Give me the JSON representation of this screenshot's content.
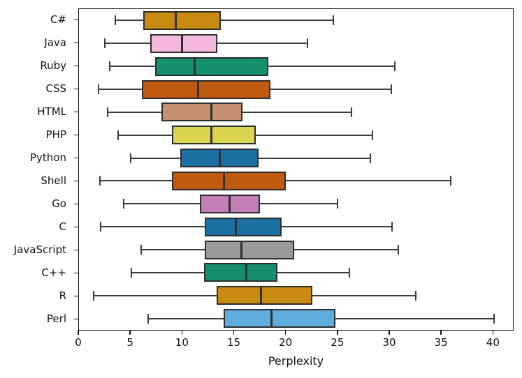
{
  "figure": {
    "xlabel": "Perplexity"
  },
  "chart_data": {
    "type": "boxplot",
    "orientation": "horizontal",
    "title": "",
    "xlabel": "Perplexity",
    "ylabel": "",
    "xlim": [
      0,
      42
    ],
    "x_ticks": [
      0,
      5,
      10,
      15,
      20,
      25,
      30,
      35,
      40
    ],
    "grid": false,
    "legend": "none",
    "frame": true,
    "edge_color": "#2e2e2e",
    "whisker_color": "#3b3b3b",
    "categories": [
      "C#",
      "Java",
      "Ruby",
      "CSS",
      "HTML",
      "PHP",
      "Python",
      "Shell",
      "Go",
      "C",
      "JavaScript",
      "C++",
      "R",
      "Perl"
    ],
    "series": [
      {
        "name": "C#",
        "whisker_low": 3.5,
        "q1": 6.2,
        "median": 9.4,
        "q3": 13.7,
        "whisker_high": 24.6,
        "color": "#C98A12"
      },
      {
        "name": "Java",
        "whisker_low": 2.5,
        "q1": 6.9,
        "median": 10.0,
        "q3": 13.4,
        "whisker_high": 22.1,
        "color": "#F3B8DB"
      },
      {
        "name": "Ruby",
        "whisker_low": 3.0,
        "q1": 7.4,
        "median": 11.2,
        "q3": 18.3,
        "whisker_high": 30.6,
        "color": "#168F6E"
      },
      {
        "name": "CSS",
        "whisker_low": 1.9,
        "q1": 6.1,
        "median": 11.5,
        "q3": 18.5,
        "whisker_high": 30.2,
        "color": "#C05A11"
      },
      {
        "name": "HTML",
        "whisker_low": 2.8,
        "q1": 8.0,
        "median": 12.8,
        "q3": 15.8,
        "whisker_high": 26.4,
        "color": "#C3916F"
      },
      {
        "name": "PHP",
        "whisker_low": 3.8,
        "q1": 9.0,
        "median": 12.8,
        "q3": 17.1,
        "whisker_high": 28.4,
        "color": "#DBD44E"
      },
      {
        "name": "Python",
        "whisker_low": 5.0,
        "q1": 9.8,
        "median": 13.6,
        "q3": 17.4,
        "whisker_high": 28.2,
        "color": "#1C6FA3"
      },
      {
        "name": "Shell",
        "whisker_low": 2.0,
        "q1": 9.0,
        "median": 14.0,
        "q3": 20.0,
        "whisker_high": 36.0,
        "color": "#C05A11"
      },
      {
        "name": "Go",
        "whisker_low": 4.3,
        "q1": 11.7,
        "median": 14.6,
        "q3": 17.5,
        "whisker_high": 25.0,
        "color": "#C280B7"
      },
      {
        "name": "C",
        "whisker_low": 2.1,
        "q1": 12.2,
        "median": 15.2,
        "q3": 19.6,
        "whisker_high": 30.3,
        "color": "#1C6FA3"
      },
      {
        "name": "JavaScript",
        "whisker_low": 6.0,
        "q1": 12.2,
        "median": 15.7,
        "q3": 20.8,
        "whisker_high": 30.9,
        "color": "#9A9A9A"
      },
      {
        "name": "C++",
        "whisker_low": 5.1,
        "q1": 12.1,
        "median": 16.2,
        "q3": 19.2,
        "whisker_high": 26.2,
        "color": "#168F6E"
      },
      {
        "name": "R",
        "whisker_low": 1.4,
        "q1": 13.3,
        "median": 17.6,
        "q3": 22.6,
        "whisker_high": 32.6,
        "color": "#C98A12"
      },
      {
        "name": "Perl",
        "whisker_low": 6.7,
        "q1": 14.0,
        "median": 18.6,
        "q3": 24.8,
        "whisker_high": 40.2,
        "color": "#5FADDC"
      }
    ]
  }
}
